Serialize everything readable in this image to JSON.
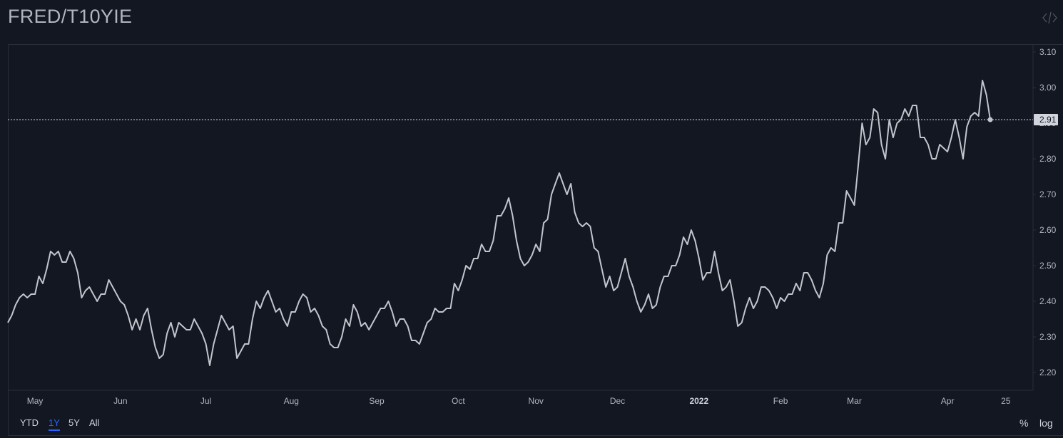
{
  "header": {
    "title": "FRED/T10YIE",
    "embed_icon": "code-brackets-icon"
  },
  "toolbar": {
    "ranges": [
      "YTD",
      "1Y",
      "5Y",
      "All"
    ],
    "active_range": "1Y",
    "percent_label": "%",
    "log_label": "log"
  },
  "colors": {
    "background": "#131722",
    "line": "#c3c5cc",
    "grid_border": "#2a2e39",
    "accent": "#2962ff",
    "last_label_bg": "#d1d4dc"
  },
  "chart_data": {
    "type": "line",
    "title": "",
    "xlabel": "",
    "ylabel": "",
    "ylim": [
      2.14,
      3.11
    ],
    "y_ticks": [
      "2.20",
      "2.30",
      "2.40",
      "2.50",
      "2.60",
      "2.70",
      "2.80",
      "2.90",
      "3.00",
      "3.10"
    ],
    "x_ticks": [
      {
        "label": "May",
        "index": 7,
        "bold": false
      },
      {
        "label": "Jun",
        "index": 29,
        "bold": false
      },
      {
        "label": "Jul",
        "index": 51,
        "bold": false
      },
      {
        "label": "Aug",
        "index": 73,
        "bold": false
      },
      {
        "label": "Sep",
        "index": 95,
        "bold": false
      },
      {
        "label": "Oct",
        "index": 116,
        "bold": false
      },
      {
        "label": "Nov",
        "index": 136,
        "bold": false
      },
      {
        "label": "Dec",
        "index": 157,
        "bold": false
      },
      {
        "label": "2022",
        "index": 178,
        "bold": true
      },
      {
        "label": "Feb",
        "index": 199,
        "bold": false
      },
      {
        "label": "Mar",
        "index": 218,
        "bold": false
      },
      {
        "label": "Apr",
        "index": 242,
        "bold": false
      },
      {
        "label": "25",
        "index": 257,
        "bold": false
      }
    ],
    "last_value": "2.91",
    "series": [
      {
        "values": [
          2.34,
          2.36,
          2.39,
          2.41,
          2.42,
          2.41,
          2.42,
          2.42,
          2.47,
          2.45,
          2.49,
          2.54,
          2.53,
          2.54,
          2.51,
          2.51,
          2.54,
          2.52,
          2.48,
          2.41,
          2.43,
          2.44,
          2.42,
          2.4,
          2.42,
          2.42,
          2.46,
          2.44,
          2.42,
          2.4,
          2.39,
          2.36,
          2.32,
          2.35,
          2.32,
          2.36,
          2.38,
          2.32,
          2.27,
          2.24,
          2.25,
          2.31,
          2.34,
          2.3,
          2.34,
          2.33,
          2.32,
          2.32,
          2.35,
          2.33,
          2.31,
          2.28,
          2.22,
          2.28,
          2.32,
          2.36,
          2.34,
          2.32,
          2.33,
          2.24,
          2.26,
          2.28,
          2.28,
          2.35,
          2.4,
          2.38,
          2.41,
          2.43,
          2.4,
          2.37,
          2.38,
          2.35,
          2.33,
          2.37,
          2.37,
          2.4,
          2.42,
          2.41,
          2.37,
          2.38,
          2.36,
          2.33,
          2.32,
          2.28,
          2.27,
          2.27,
          2.3,
          2.35,
          2.33,
          2.39,
          2.37,
          2.33,
          2.34,
          2.32,
          2.34,
          2.36,
          2.38,
          2.38,
          2.4,
          2.37,
          2.33,
          2.35,
          2.35,
          2.33,
          2.29,
          2.29,
          2.28,
          2.31,
          2.34,
          2.35,
          2.38,
          2.37,
          2.37,
          2.38,
          2.38,
          2.45,
          2.43,
          2.46,
          2.5,
          2.49,
          2.52,
          2.52,
          2.56,
          2.54,
          2.54,
          2.57,
          2.64,
          2.64,
          2.66,
          2.69,
          2.64,
          2.57,
          2.52,
          2.5,
          2.51,
          2.53,
          2.56,
          2.54,
          2.62,
          2.63,
          2.7,
          2.73,
          2.76,
          2.73,
          2.7,
          2.73,
          2.65,
          2.62,
          2.61,
          2.62,
          2.61,
          2.55,
          2.54,
          2.49,
          2.44,
          2.47,
          2.43,
          2.44,
          2.48,
          2.52,
          2.47,
          2.44,
          2.4,
          2.37,
          2.39,
          2.42,
          2.38,
          2.39,
          2.44,
          2.47,
          2.47,
          2.5,
          2.5,
          2.53,
          2.58,
          2.56,
          2.6,
          2.57,
          2.52,
          2.46,
          2.48,
          2.48,
          2.54,
          2.48,
          2.43,
          2.44,
          2.46,
          2.4,
          2.33,
          2.34,
          2.38,
          2.41,
          2.38,
          2.4,
          2.44,
          2.44,
          2.43,
          2.41,
          2.38,
          2.41,
          2.4,
          2.42,
          2.42,
          2.45,
          2.43,
          2.48,
          2.48,
          2.46,
          2.43,
          2.41,
          2.45,
          2.53,
          2.55,
          2.54,
          2.62,
          2.62,
          2.71,
          2.69,
          2.67,
          2.78,
          2.9,
          2.84,
          2.86,
          2.94,
          2.93,
          2.84,
          2.8,
          2.91,
          2.86,
          2.9,
          2.91,
          2.94,
          2.92,
          2.95,
          2.95,
          2.86,
          2.86,
          2.84,
          2.8,
          2.8,
          2.84,
          2.83,
          2.82,
          2.86,
          2.91,
          2.86,
          2.8,
          2.89,
          2.92,
          2.93,
          2.92,
          3.02,
          2.98,
          2.91
        ]
      }
    ]
  }
}
